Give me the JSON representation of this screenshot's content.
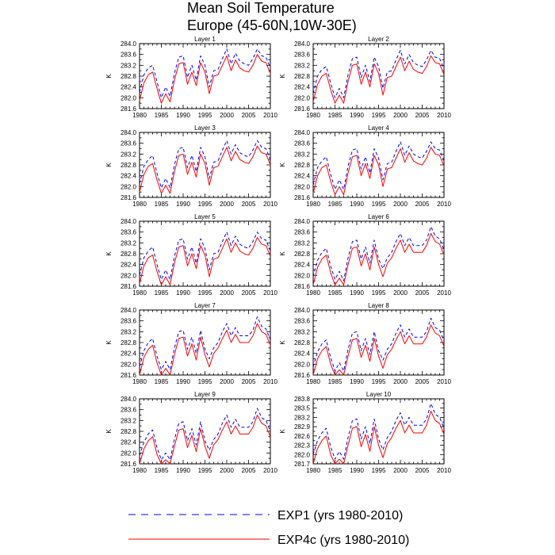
{
  "chart_data": {
    "type": "line",
    "title": "Mean Soil Temperature",
    "subtitle": "Europe (45-60N,10W-30E)",
    "ylabel": "K",
    "xlim": [
      1980,
      2010
    ],
    "x_ticks": [
      1980,
      1985,
      1990,
      1995,
      2000,
      2005,
      2010
    ],
    "x": [
      1980,
      1981,
      1982,
      1983,
      1984,
      1985,
      1986,
      1987,
      1988,
      1989,
      1990,
      1991,
      1992,
      1993,
      1994,
      1995,
      1996,
      1997,
      1998,
      1999,
      2000,
      2001,
      2002,
      2003,
      2004,
      2005,
      2006,
      2007,
      2008,
      2009,
      2010
    ],
    "legend": [
      {
        "name": "EXP1 (yrs 1980-2010)",
        "color": "#0000ff",
        "dash": "dashed"
      },
      {
        "name": "EXP4c (yrs 1980-2010)",
        "color": "#ff0000",
        "dash": "solid"
      }
    ],
    "panels": [
      {
        "title": "Layer 1",
        "ylim": [
          281.6,
          284.0
        ],
        "yticks": [
          281.6,
          282.0,
          282.4,
          282.8,
          283.2,
          283.6,
          284.0
        ],
        "series": [
          {
            "name": "EXP1",
            "values": [
              282.2,
              282.85,
              283.1,
              283.2,
              282.6,
              282.0,
              282.4,
              282.05,
              282.9,
              283.5,
              283.55,
              282.75,
              283.2,
              282.65,
              283.55,
              283.2,
              282.4,
              283.0,
              283.05,
              283.45,
              283.8,
              283.25,
              283.65,
              283.35,
              283.25,
              283.2,
              283.45,
              283.8,
              283.55,
              283.5,
              283.1
            ]
          },
          {
            "name": "EXP4c",
            "values": [
              281.9,
              282.55,
              282.85,
              282.95,
              282.35,
              281.8,
              282.15,
              281.85,
              282.65,
              283.25,
              283.3,
              282.5,
              282.95,
              282.45,
              283.3,
              282.95,
              282.15,
              282.8,
              282.85,
              283.2,
              283.55,
              283.0,
              283.4,
              283.1,
              283.0,
              282.95,
              283.2,
              283.6,
              283.35,
              283.3,
              282.9
            ]
          }
        ]
      },
      {
        "title": "Layer 2",
        "ylim": [
          281.6,
          284.0
        ],
        "yticks": [
          281.6,
          282.0,
          282.4,
          282.8,
          283.2,
          283.6,
          284.0
        ],
        "series": [
          {
            "name": "EXP1",
            "values": [
              282.15,
              282.8,
              283.05,
              283.15,
              282.55,
              282.0,
              282.35,
              282.0,
              282.85,
              283.45,
              283.5,
              282.75,
              283.2,
              282.6,
              283.5,
              283.15,
              282.35,
              282.95,
              283.0,
              283.4,
              283.75,
              283.25,
              283.6,
              283.3,
              283.2,
              283.15,
              283.4,
              283.75,
              283.5,
              283.45,
              283.05
            ]
          },
          {
            "name": "EXP4c",
            "values": [
              281.85,
              282.5,
              282.8,
              282.9,
              282.3,
              281.8,
              282.1,
              281.8,
              282.6,
              283.2,
              283.25,
              282.5,
              282.95,
              282.4,
              283.25,
              282.9,
              282.1,
              282.75,
              282.8,
              283.15,
              283.5,
              283.0,
              283.35,
              283.05,
              282.95,
              282.9,
              283.15,
              283.55,
              283.3,
              283.25,
              282.85
            ]
          }
        ]
      },
      {
        "title": "Layer 3",
        "ylim": [
          281.6,
          284.0
        ],
        "yticks": [
          281.6,
          282.0,
          282.4,
          282.8,
          283.2,
          283.6,
          284.0
        ],
        "series": [
          {
            "name": "EXP1",
            "values": [
              282.1,
              282.75,
              283.0,
              283.15,
              282.5,
              281.95,
              282.3,
              281.95,
              282.8,
              283.4,
              283.45,
              282.7,
              283.15,
              282.55,
              283.45,
              283.1,
              282.3,
              282.9,
              282.95,
              283.35,
              283.7,
              283.2,
              283.55,
              283.25,
              283.15,
              283.1,
              283.35,
              283.7,
              283.45,
              283.4,
              283.0
            ]
          },
          {
            "name": "EXP4c",
            "values": [
              281.8,
              282.45,
              282.75,
              282.85,
              282.25,
              281.75,
              282.05,
              281.75,
              282.55,
              283.15,
              283.2,
              282.45,
              282.9,
              282.35,
              283.2,
              282.85,
              282.05,
              282.7,
              282.75,
              283.1,
              283.45,
              282.95,
              283.3,
              283.0,
              282.9,
              282.85,
              283.1,
              283.5,
              283.25,
              283.2,
              282.8
            ]
          }
        ]
      },
      {
        "title": "Layer 4",
        "ylim": [
          281.6,
          284.0
        ],
        "yticks": [
          281.6,
          282.0,
          282.4,
          282.8,
          283.2,
          283.6,
          284.0
        ],
        "series": [
          {
            "name": "EXP1",
            "values": [
              282.05,
              282.7,
              282.95,
              283.1,
              282.45,
              281.9,
              282.25,
              281.9,
              282.75,
              283.35,
              283.4,
              282.65,
              283.1,
              282.5,
              283.4,
              283.05,
              282.25,
              282.85,
              282.9,
              283.3,
              283.65,
              283.15,
              283.5,
              283.2,
              283.1,
              283.05,
              283.3,
              283.65,
              283.4,
              283.35,
              282.95
            ]
          },
          {
            "name": "EXP4c",
            "values": [
              281.75,
              282.4,
              282.7,
              282.8,
              282.2,
              281.7,
              282.0,
              281.7,
              282.5,
              283.1,
              283.15,
              282.4,
              282.85,
              282.3,
              283.15,
              282.8,
              282.0,
              282.65,
              282.7,
              283.05,
              283.4,
              282.9,
              283.25,
              282.95,
              282.85,
              282.8,
              283.05,
              283.45,
              283.2,
              283.15,
              282.75
            ]
          }
        ]
      },
      {
        "title": "Layer 5",
        "ylim": [
          281.6,
          284.0
        ],
        "yticks": [
          281.6,
          282.0,
          282.4,
          282.8,
          283.2,
          283.6,
          284.0
        ],
        "series": [
          {
            "name": "EXP1",
            "values": [
              282.0,
              282.65,
              282.9,
              283.05,
              282.4,
              281.85,
              282.2,
              281.85,
              282.7,
              283.3,
              283.35,
              282.6,
              283.05,
              282.45,
              283.35,
              283.0,
              282.2,
              282.8,
              282.85,
              283.25,
              283.6,
              283.1,
              283.45,
              283.15,
              283.05,
              283.0,
              283.25,
              283.6,
              283.35,
              283.3,
              282.9
            ]
          },
          {
            "name": "EXP4c",
            "values": [
              281.7,
              282.35,
              282.65,
              282.75,
              282.15,
              281.65,
              281.95,
              281.65,
              282.45,
              283.05,
              283.1,
              282.35,
              282.8,
              282.25,
              283.1,
              282.75,
              281.95,
              282.6,
              282.65,
              283.0,
              283.35,
              282.85,
              283.2,
              282.9,
              282.8,
              282.75,
              283.0,
              283.4,
              283.15,
              283.1,
              282.7
            ]
          }
        ]
      },
      {
        "title": "Layer 6",
        "ylim": [
          281.6,
          284.0
        ],
        "yticks": [
          281.6,
          282.0,
          282.4,
          282.8,
          283.2,
          283.6,
          284.0
        ],
        "series": [
          {
            "name": "EXP1",
            "values": [
              281.95,
              282.55,
              282.85,
              283.0,
              282.35,
              281.85,
              282.15,
              281.8,
              282.65,
              283.25,
              283.3,
              282.6,
              283.05,
              282.45,
              283.3,
              282.6,
              282.25,
              282.65,
              282.85,
              283.25,
              283.55,
              283.1,
              283.4,
              283.1,
              283.1,
              283.1,
              283.3,
              283.8,
              283.45,
              283.35,
              282.95
            ]
          },
          {
            "name": "EXP4c",
            "values": [
              281.65,
              282.3,
              282.6,
              282.75,
              282.1,
              281.65,
              281.9,
              281.65,
              282.4,
              283.0,
              283.05,
              282.35,
              282.8,
              282.2,
              283.05,
              282.4,
              281.95,
              282.45,
              282.65,
              283.0,
              283.3,
              282.85,
              283.15,
              282.85,
              282.85,
              282.85,
              283.1,
              283.55,
              283.25,
              283.15,
              282.75
            ]
          }
        ]
      },
      {
        "title": "Layer 7",
        "ylim": [
          281.6,
          284.0
        ],
        "yticks": [
          281.6,
          282.0,
          282.4,
          282.8,
          283.2,
          283.6,
          284.0
        ],
        "series": [
          {
            "name": "EXP1",
            "values": [
              281.9,
              282.5,
              282.8,
              282.95,
              282.3,
              281.8,
              282.1,
              281.8,
              282.6,
              283.2,
              283.25,
              282.55,
              283.0,
              282.4,
              283.25,
              282.55,
              282.2,
              282.6,
              282.8,
              283.2,
              283.5,
              283.05,
              283.35,
              283.05,
              283.05,
              283.05,
              283.25,
              283.75,
              283.4,
              283.3,
              282.9
            ]
          },
          {
            "name": "EXP4c",
            "values": [
              281.6,
              282.25,
              282.55,
              282.7,
              282.05,
              281.6,
              281.85,
              281.6,
              282.35,
              282.95,
              283.0,
              282.3,
              282.75,
              282.15,
              283.0,
              282.35,
              281.9,
              282.4,
              282.6,
              282.95,
              283.25,
              282.8,
              283.1,
              282.8,
              282.8,
              282.8,
              283.05,
              283.5,
              283.2,
              283.1,
              282.7
            ]
          }
        ]
      },
      {
        "title": "Layer 8",
        "ylim": [
          281.6,
          284.0
        ],
        "yticks": [
          281.6,
          282.0,
          282.4,
          282.8,
          283.2,
          283.6,
          284.0
        ],
        "series": [
          {
            "name": "EXP1",
            "values": [
              281.9,
              282.45,
              282.75,
              282.9,
              282.25,
              281.75,
              282.05,
              281.75,
              282.55,
              283.15,
              283.2,
              282.5,
              282.95,
              282.35,
              283.2,
              282.5,
              282.15,
              282.55,
              282.75,
              283.15,
              283.45,
              283.0,
              283.3,
              283.0,
              283.0,
              283.0,
              283.2,
              283.7,
              283.35,
              283.25,
              282.85
            ]
          },
          {
            "name": "EXP4c",
            "values": [
              281.6,
              282.2,
              282.5,
              282.65,
              282.0,
              281.6,
              281.8,
              281.6,
              282.3,
              282.9,
              282.95,
              282.25,
              282.7,
              282.1,
              282.95,
              282.3,
              281.85,
              282.35,
              282.55,
              282.9,
              283.2,
              282.75,
              283.05,
              282.75,
              282.75,
              282.75,
              283.0,
              283.45,
              283.15,
              283.05,
              282.65
            ]
          }
        ]
      },
      {
        "title": "Layer 9",
        "ylim": [
          281.6,
          284.0
        ],
        "yticks": [
          281.6,
          282.0,
          282.4,
          282.8,
          283.2,
          283.6,
          284.0
        ],
        "series": [
          {
            "name": "EXP1",
            "values": [
              281.9,
              282.4,
              282.7,
              282.85,
              282.2,
              281.75,
              282.0,
              281.75,
              282.5,
              283.1,
              283.15,
              282.45,
              282.9,
              282.3,
              283.15,
              282.45,
              282.1,
              282.5,
              282.7,
              283.1,
              283.4,
              282.95,
              283.25,
              282.95,
              282.95,
              282.95,
              283.15,
              283.65,
              283.3,
              283.2,
              282.8
            ]
          },
          {
            "name": "EXP4c",
            "values": [
              281.6,
              282.15,
              282.45,
              282.6,
              281.95,
              281.6,
              281.75,
              281.6,
              282.25,
              282.85,
              282.9,
              282.2,
              282.65,
              282.05,
              282.9,
              282.25,
              281.8,
              282.3,
              282.5,
              282.85,
              283.15,
              282.7,
              283.0,
              282.7,
              282.7,
              282.7,
              282.95,
              283.4,
              283.1,
              283.0,
              282.6
            ]
          }
        ]
      },
      {
        "title": "Layer 10",
        "ylim": [
          281.7,
          283.8
        ],
        "yticks": [
          281.7,
          282.0,
          282.3,
          282.6,
          282.9,
          283.2,
          283.5,
          283.8
        ],
        "series": [
          {
            "name": "EXP1",
            "values": [
              282.0,
              282.45,
              282.7,
              282.85,
              282.25,
              281.85,
              282.1,
              281.85,
              282.55,
              283.1,
              283.15,
              282.5,
              282.9,
              282.35,
              283.15,
              282.5,
              282.15,
              282.55,
              282.75,
              283.1,
              283.35,
              282.95,
              283.2,
              282.95,
              282.95,
              282.95,
              283.15,
              283.65,
              283.3,
              283.2,
              282.85
            ]
          },
          {
            "name": "EXP4c",
            "values": [
              281.7,
              282.2,
              282.45,
              282.6,
              282.0,
              281.7,
              281.85,
              281.7,
              282.3,
              282.85,
              282.9,
              282.25,
              282.65,
              282.1,
              282.9,
              282.3,
              281.9,
              282.35,
              282.55,
              282.85,
              283.1,
              282.7,
              282.95,
              282.7,
              282.7,
              282.7,
              282.95,
              283.4,
              283.1,
              283.0,
              282.65
            ]
          }
        ]
      }
    ]
  }
}
